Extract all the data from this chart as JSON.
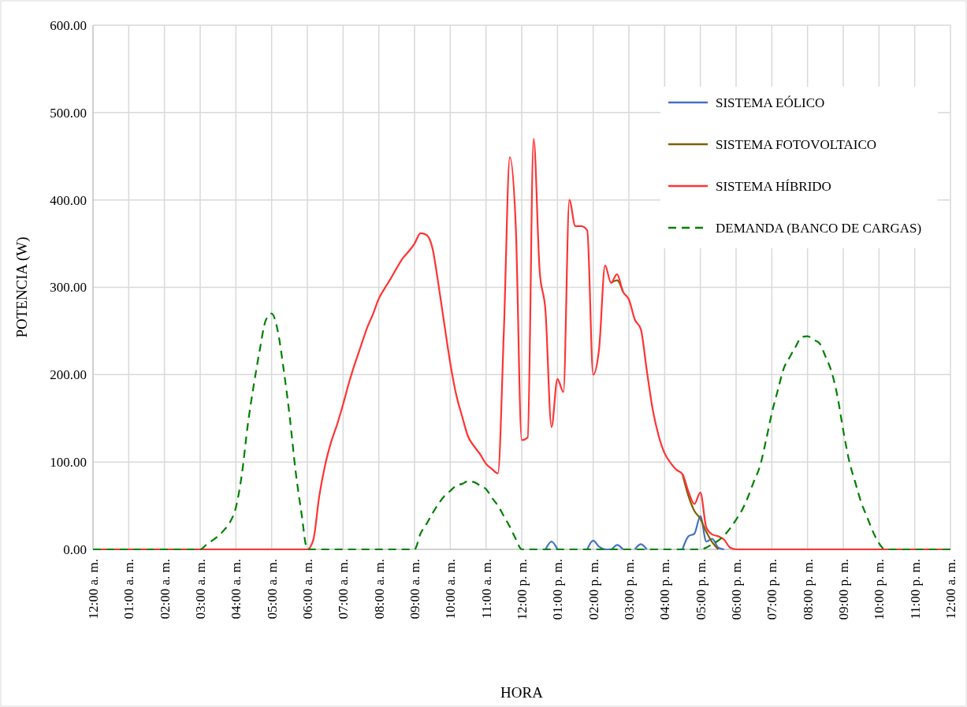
{
  "chart_data": {
    "type": "line",
    "xlabel": "HORA",
    "ylabel": "POTENCIA (W)",
    "ylim": [
      0,
      600
    ],
    "categories": [
      "12:00 a. m.",
      null,
      null,
      null,
      null,
      null,
      "01:00 a. m.",
      null,
      null,
      null,
      null,
      null,
      "02:00 a. m.",
      null,
      null,
      null,
      null,
      null,
      "03:00 a. m.",
      null,
      null,
      null,
      null,
      null,
      "04:00 a. m.",
      null,
      null,
      null,
      null,
      null,
      "05:00 a. m.",
      null,
      null,
      null,
      null,
      null,
      "06:00 a. m.",
      null,
      null,
      null,
      null,
      null,
      "07:00 a. m.",
      null,
      null,
      null,
      null,
      null,
      "08:00 a. m.",
      null,
      null,
      null,
      null,
      null,
      "09:00 a. m.",
      null,
      null,
      null,
      null,
      null,
      "10:00 a. m.",
      null,
      null,
      null,
      null,
      null,
      "11:00 a. m.",
      null,
      null,
      null,
      null,
      null,
      "12:00 p. m.",
      null,
      null,
      null,
      null,
      null,
      "01:00 p. m.",
      null,
      null,
      null,
      null,
      null,
      "02:00 p. m.",
      null,
      null,
      null,
      null,
      null,
      "03:00 p. m.",
      null,
      null,
      null,
      null,
      null,
      "04:00 p. m.",
      null,
      null,
      null,
      null,
      null,
      "05:00 p. m.",
      null,
      null,
      null,
      null,
      null,
      "06:00 p. m.",
      null,
      null,
      null,
      null,
      null,
      "07:00 p. m.",
      null,
      null,
      null,
      null,
      null,
      "08:00 p. m.",
      null,
      null,
      null,
      null,
      null,
      "09:00 p. m.",
      null,
      null,
      null,
      null,
      null,
      "10:00 p. m.",
      null,
      null,
      null,
      null,
      null,
      "11:00 p. m.",
      null,
      null,
      null,
      null,
      null,
      "12:00 a. m."
    ],
    "yticks": [
      {
        "value": 0,
        "label": "0.00"
      },
      {
        "value": 100,
        "label": "100.00"
      },
      {
        "value": 200,
        "label": "200.00"
      },
      {
        "value": 300,
        "label": "300.00"
      },
      {
        "value": 400,
        "label": "400.00"
      },
      {
        "value": 500,
        "label": "500.00"
      },
      {
        "value": 600,
        "label": "600.00"
      }
    ],
    "grid": true,
    "legend": "top right",
    "series": [
      {
        "name": "SISTEMA EÓLICO",
        "color": "#4472c4",
        "line_style": "solid",
        "values": [
          null,
          null,
          null,
          null,
          null,
          null,
          null,
          null,
          null,
          null,
          null,
          null,
          null,
          null,
          null,
          null,
          null,
          null,
          null,
          null,
          null,
          null,
          null,
          null,
          null,
          null,
          null,
          null,
          null,
          null,
          null,
          null,
          null,
          null,
          null,
          null,
          null,
          null,
          null,
          null,
          null,
          null,
          null,
          null,
          null,
          null,
          null,
          null,
          null,
          null,
          null,
          null,
          null,
          null,
          null,
          null,
          null,
          null,
          null,
          null,
          null,
          null,
          null,
          null,
          null,
          null,
          null,
          null,
          null,
          null,
          null,
          null,
          null,
          null,
          null,
          null,
          0,
          9,
          0,
          null,
          null,
          null,
          null,
          0,
          10,
          3,
          0,
          0,
          5,
          0,
          null,
          0,
          6,
          0,
          null,
          null,
          null,
          null,
          null,
          0,
          15,
          18,
          38,
          9,
          12,
          2,
          0,
          null,
          null,
          null,
          null,
          null,
          null,
          null,
          null,
          null,
          null,
          null,
          null,
          null,
          null,
          null,
          null,
          null,
          null,
          null,
          null,
          null,
          null,
          null,
          null,
          null,
          null,
          null,
          null,
          null,
          null,
          null,
          null,
          null,
          null,
          null,
          null,
          null,
          null
        ]
      },
      {
        "name": "SISTEMA FOTOVOLTAICO",
        "color": "#7f6000",
        "line_style": "solid",
        "values": [
          null,
          null,
          null,
          null,
          null,
          null,
          null,
          null,
          null,
          null,
          null,
          null,
          null,
          null,
          null,
          null,
          null,
          null,
          null,
          null,
          null,
          null,
          null,
          null,
          null,
          null,
          null,
          null,
          null,
          null,
          null,
          null,
          null,
          null,
          null,
          null,
          null,
          null,
          null,
          null,
          null,
          null,
          null,
          null,
          null,
          null,
          null,
          null,
          null,
          null,
          null,
          null,
          null,
          null,
          null,
          null,
          null,
          null,
          null,
          null,
          null,
          null,
          null,
          null,
          null,
          null,
          null,
          null,
          null,
          null,
          null,
          null,
          null,
          null,
          null,
          null,
          null,
          null,
          null,
          null,
          null,
          null,
          null,
          null,
          null,
          null,
          null,
          305,
          308,
          295,
          null,
          null,
          null,
          null,
          null,
          null,
          null,
          null,
          null,
          86,
          61,
          44,
          35,
          20,
          8,
          0,
          null,
          null,
          null,
          null,
          null,
          null,
          null,
          null,
          null,
          null,
          null,
          null,
          null,
          null,
          null,
          null,
          null,
          null,
          null,
          null,
          null,
          null,
          null,
          null,
          null,
          null,
          null,
          null,
          null,
          null,
          null,
          null,
          null,
          null,
          null,
          null,
          null,
          null,
          null
        ]
      },
      {
        "name": "SISTEMA HÍBRIDO",
        "color": "#ff3333",
        "line_style": "solid",
        "values": [
          0,
          0,
          0,
          0,
          0,
          0,
          0,
          0,
          0,
          0,
          0,
          0,
          0,
          0,
          0,
          0,
          0,
          0,
          0,
          0,
          0,
          0,
          0,
          0,
          0,
          0,
          0,
          0,
          0,
          0,
          0,
          0,
          0,
          0,
          0,
          0,
          0,
          11,
          61,
          97,
          123,
          143,
          166,
          191,
          213,
          233,
          253,
          269,
          287,
          299,
          310,
          322,
          333,
          341,
          350,
          362,
          360,
          345,
          304,
          258,
          213,
          177,
          152,
          129,
          118,
          109,
          98,
          92,
          87,
          250,
          449,
          370,
          125,
          128,
          470,
          320,
          272,
          140,
          195,
          180,
          400,
          370,
          370,
          365,
          200,
          230,
          325,
          305,
          315,
          295,
          286,
          263,
          252,
          205,
          160,
          130,
          110,
          99,
          91,
          86,
          66,
          52,
          65,
          25,
          17,
          15,
          11,
          2,
          0,
          0,
          0,
          0,
          0,
          0,
          0,
          0,
          0,
          0,
          0,
          0,
          0,
          0,
          0,
          0,
          0,
          0,
          0,
          0,
          0,
          0,
          0,
          0,
          0,
          0,
          0,
          0,
          0,
          0,
          0,
          0,
          0,
          0,
          0,
          0,
          0
        ]
      },
      {
        "name": "DEMANDA (BANCO DE CARGAS)",
        "color": "#008000",
        "line_style": "dashed",
        "values": [
          0,
          0,
          0,
          0,
          0,
          0,
          0,
          0,
          0,
          0,
          0,
          0,
          0,
          0,
          0,
          0,
          0,
          0,
          0,
          5,
          10,
          15,
          22,
          31,
          48,
          86,
          143,
          188,
          228,
          262,
          270,
          251,
          207,
          154,
          91,
          42,
          0,
          0,
          0,
          0,
          0,
          0,
          0,
          0,
          0,
          0,
          0,
          0,
          0,
          0,
          0,
          0,
          0,
          0,
          0,
          18,
          29,
          41,
          52,
          61,
          67,
          73,
          75,
          78,
          77,
          73,
          69,
          59,
          50,
          38,
          26,
          12,
          0,
          0,
          0,
          0,
          0,
          0,
          0,
          0,
          0,
          0,
          0,
          0,
          0,
          0,
          0,
          0,
          0,
          0,
          0,
          0,
          0,
          0,
          0,
          0,
          0,
          0,
          0,
          0,
          0,
          0,
          0,
          2,
          6,
          10,
          16,
          24,
          34,
          45,
          60,
          78,
          95,
          124,
          156,
          182,
          207,
          220,
          232,
          243,
          244,
          240,
          236,
          221,
          204,
          176,
          136,
          101,
          77,
          54,
          37,
          20,
          7,
          0,
          0,
          0,
          0,
          0,
          0,
          0,
          0,
          0,
          0,
          0,
          0
        ]
      }
    ]
  }
}
